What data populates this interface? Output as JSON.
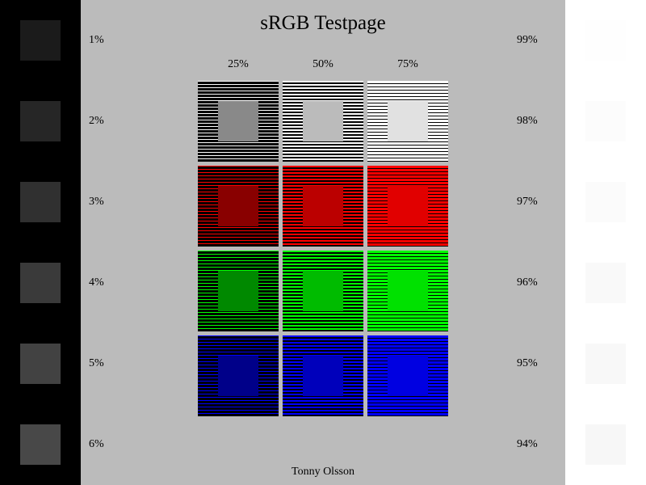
{
  "title": "sRGB Testpage",
  "columns": [
    "25%",
    "50%",
    "75%"
  ],
  "left_labels": [
    "1%",
    "2%",
    "3%",
    "4%",
    "5%",
    "6%"
  ],
  "right_labels": [
    "99%",
    "98%",
    "97%",
    "96%",
    "95%",
    "94%"
  ],
  "footer": "Tonny Olsson"
}
